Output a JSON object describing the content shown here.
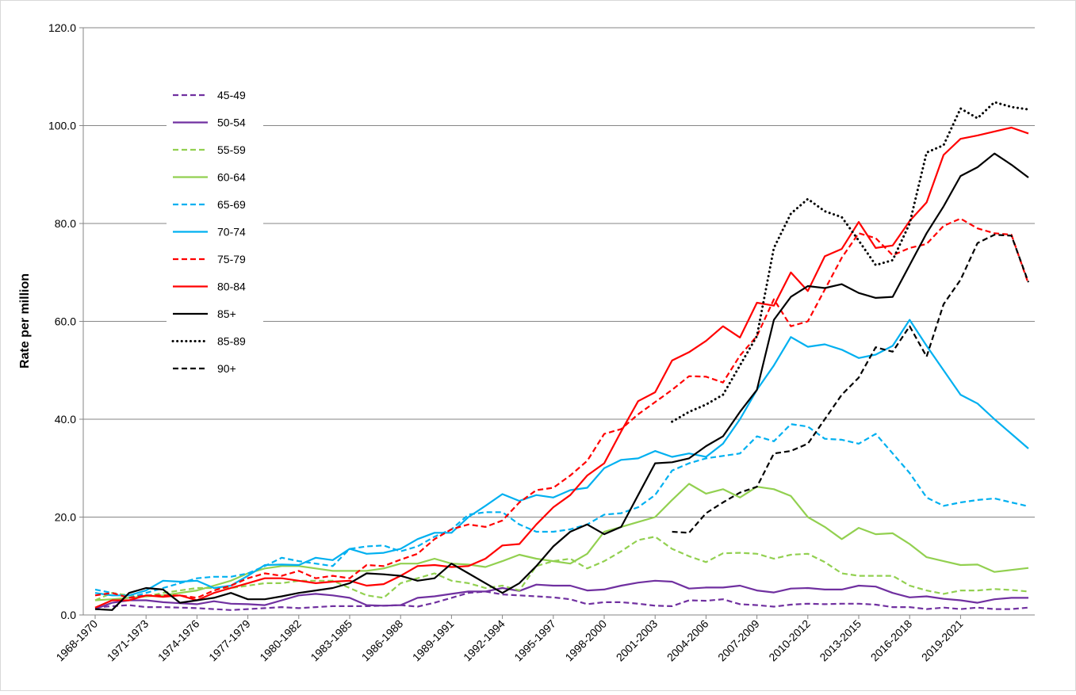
{
  "chart_data": {
    "type": "line",
    "ylabel": "Rate per million",
    "categories": [
      "1968-1970",
      null,
      null,
      "1971-1973",
      null,
      null,
      "1974-1976",
      null,
      null,
      "1977-1979",
      null,
      null,
      "1980-1982",
      null,
      null,
      "1983-1985",
      null,
      null,
      "1986-1988",
      null,
      null,
      "1989-1991",
      null,
      null,
      "1992-1994",
      null,
      null,
      "1995-1997",
      null,
      null,
      "1998-2000",
      null,
      null,
      "2001-2003",
      null,
      null,
      "2004-2006",
      null,
      null,
      "2007-2009",
      null,
      null,
      "2010-2012",
      null,
      null,
      "2013-2015",
      null,
      null,
      "2016-2018",
      null,
      null,
      "2019-2021",
      null,
      null,
      null,
      null
    ],
    "ylim": [
      0,
      120
    ],
    "yticks": [
      {
        "value": 0,
        "label": "0.0"
      },
      {
        "value": 20,
        "label": "20.0"
      },
      {
        "value": 40,
        "label": "40.0"
      },
      {
        "value": 60,
        "label": "60.0"
      },
      {
        "value": 80,
        "label": "80.0"
      },
      {
        "value": 100,
        "label": "100.0"
      },
      {
        "value": 120,
        "label": "120.0"
      }
    ],
    "grid": true,
    "legend": "upper left",
    "series": [
      {
        "name": "45-49",
        "color": "#7030a0",
        "dash": "dashed",
        "values": [
          1.5,
          1.8,
          2.0,
          1.6,
          1.6,
          1.5,
          1.4,
          1.2,
          1.0,
          1.2,
          1.4,
          1.6,
          1.4,
          1.6,
          1.8,
          1.8,
          1.8,
          1.9,
          2.0,
          1.7,
          2.5,
          3.5,
          4.5,
          4.8,
          4.2,
          4.0,
          3.8,
          3.6,
          3.2,
          2.2,
          2.6,
          2.6,
          2.3,
          1.9,
          1.8,
          3.0,
          2.9,
          3.2,
          2.2,
          2.0,
          1.7,
          2.1,
          2.3,
          2.2,
          2.3,
          2.3,
          2.1,
          1.6,
          1.6,
          1.2,
          1.5,
          1.2,
          1.5,
          1.2,
          1.2,
          1.5
        ]
      },
      {
        "name": "50-54",
        "color": "#7030a0",
        "dash": "solid",
        "values": [
          1.2,
          2.5,
          3.0,
          3.0,
          2.6,
          2.4,
          2.2,
          2.8,
          2.3,
          2.2,
          2.0,
          3.0,
          4.0,
          4.3,
          4.0,
          3.5,
          2.0,
          1.9,
          2.0,
          3.5,
          3.8,
          4.3,
          4.8,
          4.8,
          5.5,
          4.9,
          6.2,
          6.0,
          6.0,
          5.0,
          5.2,
          6.0,
          6.6,
          7.0,
          6.8,
          5.4,
          5.6,
          5.6,
          6.0,
          5.0,
          4.6,
          5.4,
          5.5,
          5.2,
          5.2,
          6.0,
          5.8,
          4.5,
          3.6,
          3.8,
          3.3,
          3.0,
          2.5,
          3.2,
          3.5,
          3.5
        ]
      },
      {
        "name": "55-59",
        "color": "#92d050",
        "dash": "dashed",
        "values": [
          3.0,
          4.5,
          4.0,
          3.8,
          4.5,
          5.0,
          5.5,
          5.5,
          5.5,
          6.0,
          6.5,
          6.5,
          7.0,
          7.0,
          7.0,
          5.5,
          4.0,
          3.5,
          6.5,
          7.5,
          8.5,
          7.0,
          6.5,
          5.5,
          6.0,
          5.0,
          10.0,
          11.0,
          11.5,
          9.5,
          11.0,
          13.0,
          15.3,
          16.0,
          13.5,
          12.0,
          10.8,
          12.6,
          12.7,
          12.5,
          11.5,
          12.3,
          12.5,
          10.8,
          8.5,
          8.0,
          8.0,
          8.0,
          6.0,
          5.0,
          4.3,
          5.0,
          5.0,
          5.3,
          5.1,
          4.8
        ]
      },
      {
        "name": "60-64",
        "color": "#92d050",
        "dash": "solid",
        "values": [
          3,
          3.2,
          3.5,
          3.8,
          4,
          4.5,
          5,
          6,
          7,
          8.5,
          9.5,
          10,
          10,
          9.5,
          9,
          9,
          9,
          9.5,
          10.5,
          10.5,
          11.5,
          10.5,
          10.3,
          9.8,
          11,
          12.3,
          11.5,
          11,
          10.5,
          12.5,
          17,
          18,
          19,
          20,
          23.5,
          26.8,
          24.8,
          25.7,
          24,
          26.2,
          25.7,
          24.3,
          20,
          18,
          15.5,
          17.8,
          16.5,
          16.7,
          14.5,
          11.8,
          11,
          10.2,
          10.3,
          8.8,
          9.2,
          9.6
        ]
      },
      {
        "name": "65-69",
        "color": "#00b0f0",
        "dash": "dashed",
        "values": [
          5.2,
          4.5,
          3.5,
          4.5,
          5.5,
          6.5,
          7.5,
          7.8,
          7.8,
          8.5,
          10,
          11.7,
          11,
          10.5,
          10,
          13.5,
          14,
          14.2,
          13,
          14,
          16,
          17.5,
          20.5,
          21,
          21,
          18.5,
          17,
          17,
          17.5,
          18.5,
          20.5,
          20.8,
          22,
          24.5,
          29.5,
          31,
          32,
          32.5,
          33,
          36.5,
          35.5,
          39,
          38.5,
          36,
          35.8,
          35,
          37,
          33,
          29,
          24,
          22.3,
          23,
          23.5,
          23.8,
          23,
          22.2
        ]
      },
      {
        "name": "70-74",
        "color": "#00b0f0",
        "dash": "solid",
        "values": [
          4.5,
          4,
          4,
          5,
          7,
          6.8,
          7,
          5.5,
          6,
          8,
          10.2,
          10.3,
          10.2,
          11.7,
          11.2,
          13.5,
          12.5,
          12.7,
          13.5,
          15.5,
          16.8,
          16.8,
          20,
          22.3,
          24.7,
          23.3,
          24.5,
          24,
          25.5,
          26,
          30,
          31.7,
          32,
          33.5,
          32.3,
          33,
          32.3,
          35,
          40,
          46,
          51,
          56.8,
          54.8,
          55.3,
          54.2,
          52.5,
          53.2,
          55,
          60.3,
          55,
          50,
          45,
          43.2,
          40,
          37,
          34
        ]
      },
      {
        "name": "75-79",
        "color": "#ff0000",
        "dash": "dashed",
        "values": [
          4,
          4.5,
          3.5,
          4,
          4,
          4,
          3.5,
          5,
          6,
          7.5,
          8.5,
          8,
          9,
          7.5,
          8,
          7.5,
          10.2,
          10,
          11.3,
          12.5,
          15.5,
          17.5,
          18.5,
          18,
          19.3,
          23,
          25.5,
          26,
          28.5,
          31.5,
          37,
          38,
          41,
          43.5,
          46,
          48.8,
          48.7,
          47.5,
          53,
          57,
          64.5,
          59,
          60,
          66.5,
          73,
          78,
          77,
          73.5,
          75,
          75.8,
          79.5,
          81,
          79,
          78,
          77.7,
          67.7
        ]
      },
      {
        "name": "80-84",
        "color": "#ff0000",
        "dash": "solid",
        "values": [
          1.5,
          3,
          3,
          4,
          3.7,
          4,
          3,
          4.5,
          5.5,
          6.5,
          7.5,
          7.5,
          7,
          6.5,
          6.8,
          7,
          6,
          6.3,
          8,
          10,
          10.2,
          9.8,
          10,
          11.5,
          14.2,
          14.5,
          18.5,
          22,
          24.5,
          28.5,
          31,
          37.5,
          43.7,
          45.5,
          52,
          53.7,
          56,
          59,
          56.7,
          63.8,
          63.2,
          70,
          66.2,
          73.3,
          74.8,
          80.3,
          75,
          75.5,
          80.5,
          84.3,
          94,
          97.3,
          98,
          98.8,
          99.6,
          98.4
        ]
      },
      {
        "name": "85+",
        "color": "#000000",
        "dash": "solid",
        "values": [
          1.2,
          1,
          4.5,
          5.5,
          5.2,
          2.5,
          3,
          3.5,
          4.5,
          3.2,
          3.2,
          3.8,
          4.5,
          5,
          5.5,
          6.5,
          8.5,
          8.3,
          8,
          7,
          7.5,
          10.5,
          8.5,
          6.5,
          4.5,
          6.5,
          10,
          14,
          17,
          18.5,
          16.5,
          18,
          24.5,
          31,
          31.2,
          32,
          34.5,
          36.5,
          41.5,
          46,
          60.3,
          65,
          67.2,
          66.8,
          67.6,
          65.8,
          64.8,
          65,
          71.5,
          78,
          83.5,
          89.7,
          91.5,
          94.3,
          92,
          89.4
        ]
      },
      {
        "name": "85-89",
        "color": "#000000",
        "dash": "dotted",
        "values": [
          null,
          null,
          null,
          null,
          null,
          null,
          null,
          null,
          null,
          null,
          null,
          null,
          null,
          null,
          null,
          null,
          null,
          null,
          null,
          null,
          null,
          null,
          null,
          null,
          null,
          null,
          null,
          null,
          null,
          null,
          null,
          null,
          null,
          null,
          39.5,
          41.5,
          43,
          45,
          51,
          57,
          75,
          82,
          85,
          82.5,
          81.3,
          76.5,
          71.5,
          72.5,
          80,
          94.5,
          96,
          103.5,
          101.5,
          104.8,
          103.8,
          103.3
        ]
      },
      {
        "name": "90+",
        "color": "#000000",
        "dash": "dashed",
        "values": [
          null,
          null,
          null,
          null,
          null,
          null,
          null,
          null,
          null,
          null,
          null,
          null,
          null,
          null,
          null,
          null,
          null,
          null,
          null,
          null,
          null,
          null,
          null,
          null,
          null,
          null,
          null,
          null,
          null,
          null,
          null,
          null,
          null,
          null,
          17,
          16.8,
          20.8,
          23,
          25,
          26.2,
          33,
          33.5,
          35,
          40,
          45,
          48.5,
          54.7,
          53.8,
          59,
          52.8,
          63.5,
          68.5,
          76,
          77.7,
          77.5,
          68
        ]
      }
    ]
  }
}
